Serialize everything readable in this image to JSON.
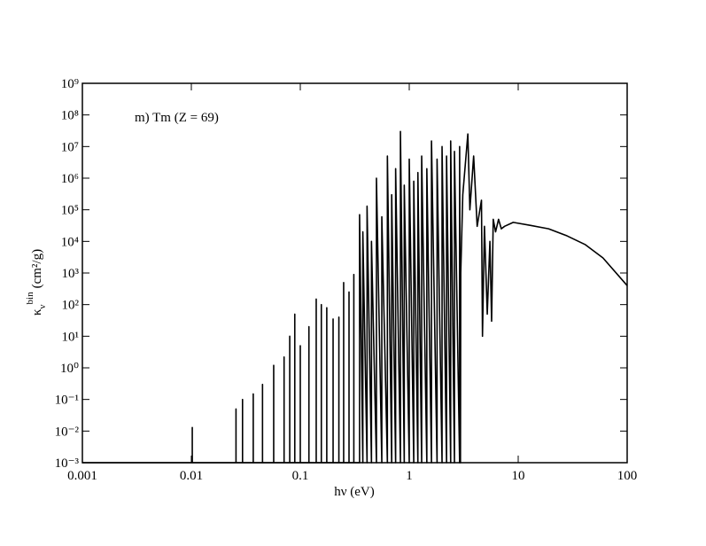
{
  "chart_data": {
    "type": "line",
    "annotation": "m) Tm (Z = 69)",
    "xlabel": "hν (eV)",
    "ylabel": {
      "symbol": "κ",
      "subscript": "ν",
      "superscript": "bin",
      "unit": "(cm²/g)"
    },
    "xscale": "log",
    "yscale": "log",
    "xlim": [
      0.001,
      100
    ],
    "ylim": [
      0.001,
      1000000000
    ],
    "xticks": [
      0.001,
      0.01,
      0.1,
      1,
      10,
      100
    ],
    "yticks": [
      {
        "value": 0.001,
        "label": "10⁻³"
      },
      {
        "value": 0.01,
        "label": "10⁻²"
      },
      {
        "value": 0.1,
        "label": "10⁻¹"
      },
      {
        "value": 1,
        "label": "10⁰"
      },
      {
        "value": 10,
        "label": "10¹"
      },
      {
        "value": 100,
        "label": "10²"
      },
      {
        "value": 1000,
        "label": "10³"
      },
      {
        "value": 10000,
        "label": "10⁴"
      },
      {
        "value": 100000,
        "label": "10⁵"
      },
      {
        "value": 1000000,
        "label": "10⁶"
      },
      {
        "value": 10000000,
        "label": "10⁷"
      },
      {
        "value": 100000000,
        "label": "10⁸"
      },
      {
        "value": 1000000000,
        "label": "10⁹"
      }
    ],
    "series": [
      {
        "color": "#000000",
        "x": [
          0.001,
          0.0102,
          0.0102,
          0.0102,
          0.0257,
          0.0257,
          0.0257,
          0.0295,
          0.0295,
          0.0295,
          0.037,
          0.037,
          0.037,
          0.045,
          0.045,
          0.045,
          0.057,
          0.057,
          0.057,
          0.071,
          0.071,
          0.071,
          0.08,
          0.08,
          0.08,
          0.089,
          0.089,
          0.089,
          0.1,
          0.1,
          0.1,
          0.12,
          0.12,
          0.12,
          0.14,
          0.14,
          0.14,
          0.156,
          0.156,
          0.156,
          0.175,
          0.175,
          0.175,
          0.2,
          0.2,
          0.2,
          0.226,
          0.226,
          0.226,
          0.25,
          0.25,
          0.25,
          0.28,
          0.28,
          0.28,
          0.31,
          0.31,
          0.31,
          0.35,
          0.35,
          0.375,
          0.375,
          0.41,
          0.41,
          0.45,
          0.45,
          0.5,
          0.5,
          0.56,
          0.56,
          0.63,
          0.63,
          0.69,
          0.69,
          0.75,
          0.75,
          0.83,
          0.83,
          0.9,
          0.9,
          1.0,
          1.0,
          1.1,
          1.1,
          1.2,
          1.2,
          1.3,
          1.3,
          1.45,
          1.45,
          1.6,
          1.6,
          1.8,
          1.8,
          2.0,
          2.0,
          2.2,
          2.2,
          2.4,
          2.4,
          2.6,
          2.6,
          2.9,
          2.9,
          2.95,
          2.97,
          3.1,
          3.45,
          3.6,
          3.9,
          4.2,
          4.6,
          4.7,
          4.9,
          5.2,
          5.5,
          5.7,
          5.9,
          6.2,
          6.6,
          7.0,
          7.5,
          9.0,
          13,
          19,
          28,
          41,
          60,
          100
        ],
        "values": [
          0.001,
          0.001,
          0.013,
          0.001,
          0.001,
          0.05,
          0.001,
          0.001,
          0.1,
          0.001,
          0.001,
          0.15,
          0.001,
          0.001,
          0.3,
          0.001,
          0.001,
          1.2,
          0.001,
          0.001,
          2.2,
          0.001,
          0.001,
          10,
          0.001,
          0.001,
          50,
          0.001,
          0.001,
          5,
          0.001,
          0.001,
          20,
          0.001,
          0.001,
          150,
          0.001,
          0.001,
          100,
          0.001,
          0.001,
          80,
          0.001,
          0.001,
          35,
          0.001,
          0.001,
          40,
          0.001,
          0.001,
          500,
          0.001,
          0.001,
          250,
          0.001,
          0.001,
          900,
          0.001,
          0.001,
          70000,
          0.001,
          20000,
          0.001,
          130000,
          0.001,
          10000,
          0.001,
          1000000,
          0.001,
          60000,
          0.001,
          5000000,
          0.001,
          300000,
          0.001,
          2000000,
          0.001,
          30000000,
          0.001,
          600000,
          0.001,
          4000000,
          0.001,
          800000,
          0.001,
          1500000,
          0.001,
          5000000,
          0.001,
          2000000,
          0.001,
          15000000,
          0.001,
          4000000,
          0.001,
          10000000,
          0.001,
          5000000,
          0.001,
          15000000,
          0.001,
          7000000,
          0.001,
          10000000,
          0.001,
          1000,
          300000,
          25000000,
          100000,
          5000000,
          30000,
          200000,
          10,
          30000,
          50,
          10000,
          30,
          50000,
          20000,
          50000,
          25000,
          30000,
          40000,
          32000,
          25000,
          15000,
          8000,
          3000,
          400
        ]
      }
    ]
  }
}
